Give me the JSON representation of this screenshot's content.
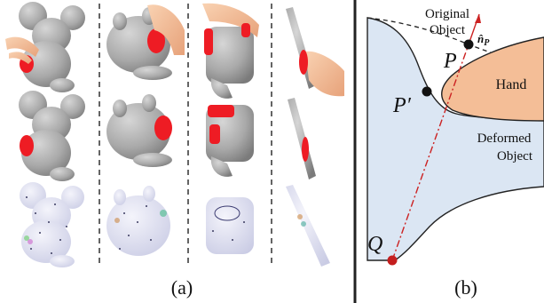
{
  "panel_a": {
    "caption": "(a)"
  },
  "panel_b": {
    "caption": "(b)",
    "labels": {
      "original_line1": "Original",
      "original_line2": "Object",
      "normal_main": "n̂",
      "normal_sub": "P",
      "point_p": "P",
      "point_p_prime": "P′",
      "hand": "Hand",
      "deformed_line1": "Deformed",
      "deformed_line2": "Object",
      "point_q": "Q"
    }
  },
  "colors": {
    "object_gray": "#a9a9a9",
    "contact_red": "#ee1c24",
    "hand_skin": "#f4be97",
    "deformed_fill": "#dbe6f3",
    "marker_red": "#c41e1e",
    "normal_arrow": "#cc2222"
  }
}
